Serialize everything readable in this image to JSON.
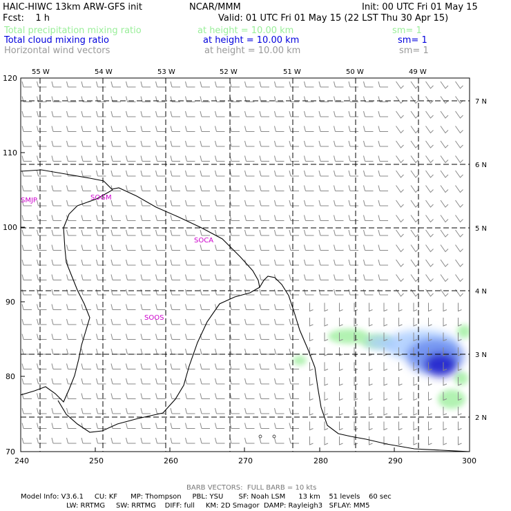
{
  "header": {
    "title": "HAIC-HIWC 13km ARW-GFS init",
    "org": "NCAR/MMM",
    "init": "Init: 00 UTC Fri 01 May 15",
    "fcst": "Fcst:    1 h",
    "valid": "Valid: 01 UTC Fri 01 May 15 (22 LST Thu 30 Apr 15)",
    "fields": [
      {
        "name": "Total precipitation mixing ratio",
        "height": "at height = 10.00 km",
        "sm": "sm= 1",
        "color": "#99ee99"
      },
      {
        "name": "Total cloud mixing ratio",
        "height": "at height = 10.00 km",
        "sm": "sm= 1",
        "color": "#0000dd"
      },
      {
        "name": "Horizontal wind vectors",
        "height": "at height = 10.00 km",
        "sm": "sm= 1",
        "color": "#999999"
      }
    ]
  },
  "axes": {
    "left_ticks": [
      "120",
      "110",
      "100",
      "90",
      "80",
      "70"
    ],
    "bottom_ticks": [
      "240",
      "250",
      "260",
      "270",
      "280",
      "290",
      "300"
    ],
    "top_lon": [
      "55 W",
      "54 W",
      "53 W",
      "52 W",
      "51 W",
      "50 W",
      "49 W"
    ],
    "right_lat": [
      "7 N",
      "6 N",
      "5 N",
      "4 N",
      "3 N",
      "2 N"
    ]
  },
  "stations": [
    "SMJP",
    "SOGM",
    "SOCA",
    "SOOS"
  ],
  "footer": {
    "barb_note": "BARB VECTORS:  FULL BARB = 10 kts",
    "model_line1": "Model Info: V3.6.1     CU: KF      MP: Thompson     PBL: YSU       SF: Noah LSM      13 km    51 levels    60 sec",
    "model_line2": "LW: RRTMG     SW: RRTMG    DIFF: full     KM: 2D Smagor  DAMP: Rayleigh3   SFLAY: MM5"
  },
  "colors": {
    "precip": "#99ee99",
    "cloud_light": "#aaccff",
    "cloud_mid": "#6688ee",
    "cloud_dark": "#2222cc",
    "station": "#cc00cc",
    "barb": "#888888"
  }
}
